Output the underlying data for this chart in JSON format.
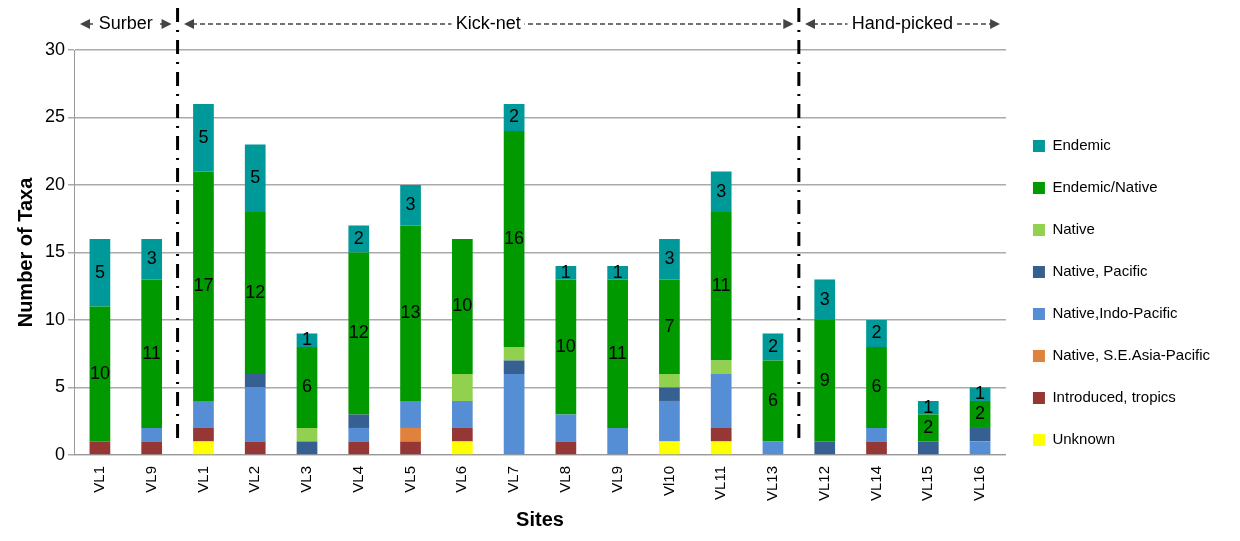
{
  "chart_data": {
    "type": "bar",
    "stacked": true,
    "xlabel": "Sites",
    "ylabel": "Number of Taxa",
    "categories": [
      "VL1",
      "VL9",
      "VL1",
      "VL2",
      "VL3",
      "VL4",
      "VL5",
      "VL6",
      "VL7",
      "VL8",
      "VL9",
      "Vl10",
      "VL11",
      "VL13",
      "VL12",
      "VL14",
      "VL15",
      "VL16"
    ],
    "series": [
      {
        "name": "Unknown",
        "color": "#ffff00",
        "values": [
          0,
          0,
          1,
          0,
          0,
          0,
          0,
          1,
          0,
          0,
          0,
          1,
          1,
          0,
          0,
          0,
          0,
          0
        ]
      },
      {
        "name": "Introduced, tropics",
        "color": "#953735",
        "values": [
          1,
          1,
          1,
          1,
          0,
          1,
          1,
          1,
          0,
          1,
          0,
          0,
          1,
          0,
          0,
          1,
          0,
          0
        ]
      },
      {
        "name": "Native, S.E.Asia-Pacific",
        "color": "#e0823c",
        "values": [
          0,
          0,
          0,
          0,
          0,
          0,
          1,
          0,
          0,
          0,
          0,
          0,
          0,
          0,
          0,
          0,
          0,
          0
        ]
      },
      {
        "name": "Native,Indo-Pacific",
        "color": "#558ed5",
        "values": [
          0,
          1,
          2,
          4,
          0,
          1,
          2,
          2,
          6,
          2,
          2,
          3,
          4,
          1,
          0,
          1,
          0,
          1
        ]
      },
      {
        "name": "Native, Pacific",
        "color": "#366092",
        "values": [
          0,
          0,
          0,
          1,
          1,
          1,
          0,
          0,
          1,
          0,
          0,
          1,
          0,
          0,
          1,
          0,
          1,
          1
        ]
      },
      {
        "name": "Native",
        "color": "#92d050",
        "values": [
          0,
          0,
          0,
          0,
          1,
          0,
          0,
          2,
          1,
          0,
          0,
          1,
          1,
          0,
          0,
          0,
          0,
          0
        ]
      },
      {
        "name": "Endemic/Native",
        "color": "#009900",
        "values": [
          10,
          11,
          17,
          12,
          6,
          12,
          13,
          10,
          16,
          10,
          11,
          7,
          11,
          6,
          9,
          6,
          2,
          2
        ],
        "value_labels": [
          "10",
          "11",
          "17",
          "12",
          "6",
          "12",
          "13",
          "10",
          "16",
          "10",
          "11",
          "7",
          "11",
          "6",
          "9",
          "6",
          "2",
          "2"
        ]
      },
      {
        "name": "Endemic",
        "color": "#009999",
        "values": [
          5,
          3,
          5,
          5,
          1,
          2,
          3,
          0,
          2,
          1,
          1,
          3,
          3,
          2,
          3,
          2,
          1,
          1
        ],
        "value_labels": [
          "5",
          "3",
          "5",
          "5",
          "1",
          "2",
          "3",
          null,
          "2",
          "1",
          "1",
          "3",
          "3",
          "2",
          "3",
          "2",
          "1",
          "1"
        ]
      }
    ],
    "ylim": [
      0,
      30
    ],
    "yticks": [
      0,
      5,
      10,
      15,
      20,
      25,
      30
    ],
    "grid": "y",
    "legend": "right",
    "annotations": [
      "Surber",
      "Kick-net",
      "Hand-picked"
    ]
  }
}
